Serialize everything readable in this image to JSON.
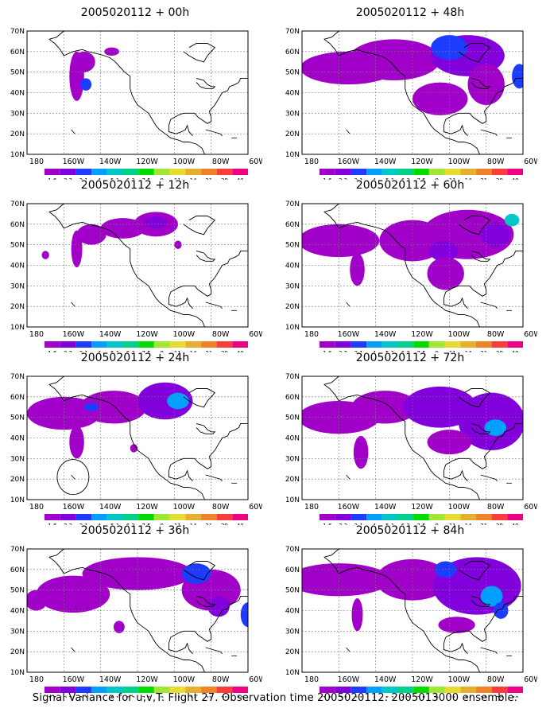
{
  "panels": [
    {
      "title": "2005020112 + 00h"
    },
    {
      "title": "2005020112 + 48h"
    },
    {
      "title": "2005020112 + 12h"
    },
    {
      "title": "2005020112 + 60h"
    },
    {
      "title": "2005020112 + 24h"
    },
    {
      "title": "2005020112 + 72h"
    },
    {
      "title": "2005020112 + 36h"
    },
    {
      "title": "2005020112 + 84h"
    }
  ],
  "lat_labels": [
    "70N",
    "60N",
    "50N",
    "40N",
    "30N",
    "20N",
    "10N"
  ],
  "lon_labels": [
    "180",
    "160W",
    "140W",
    "120W",
    "100W",
    "80W",
    "60W"
  ],
  "colorbar": {
    "levels": [
      "1.6",
      "2.2",
      "3.1",
      "4",
      "5.1",
      "6.3",
      "7.5",
      "9",
      "11",
      "14",
      "21",
      "29",
      "40"
    ],
    "colors": [
      "#a000c8",
      "#8200dc",
      "#1e3cff",
      "#00a0ff",
      "#00c8c8",
      "#00d28c",
      "#00dc00",
      "#a0e632",
      "#e6dc32",
      "#e6af2d",
      "#f08228",
      "#fa3c3c",
      "#f00082"
    ]
  },
  "caption": "Signal Variance for u,v,T. Flight 27. Observation time 2005020112. 2005013000 ensemble."
}
